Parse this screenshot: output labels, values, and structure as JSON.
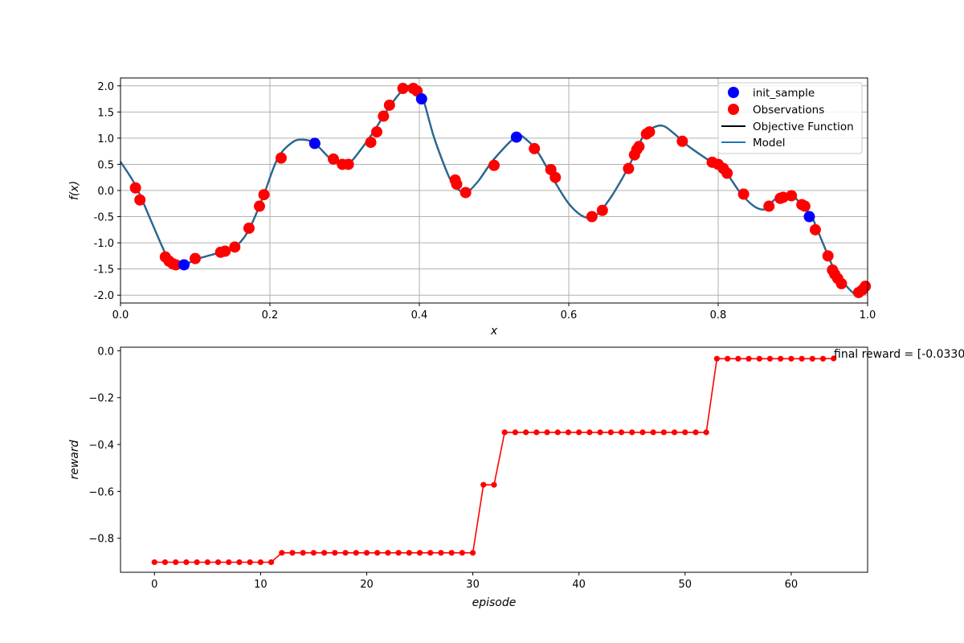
{
  "chart_data": [
    {
      "type": "line",
      "xlabel": "x",
      "ylabel": "f(x)",
      "xlim": [
        0.0,
        1.0
      ],
      "ylim": [
        -2.15,
        2.15
      ],
      "xticks": [
        "0.0",
        "0.2",
        "0.4",
        "0.6",
        "0.8",
        "1.0"
      ],
      "xtick_values": [
        0.0,
        0.2,
        0.4,
        0.6,
        0.8,
        1.0
      ],
      "yticks": [
        "-2.0",
        "-1.5",
        "-1.0",
        "-0.5",
        "0.0",
        "0.5",
        "1.0",
        "1.5",
        "2.0"
      ],
      "ytick_values": [
        -2.0,
        -1.5,
        -1.0,
        -0.5,
        0.0,
        0.5,
        1.0,
        1.5,
        2.0
      ],
      "grid": true,
      "legend_position": "top-right",
      "legend": [
        {
          "label": "init_sample",
          "kind": "dot",
          "color": "#0000ff"
        },
        {
          "label": "Observations",
          "kind": "dot",
          "color": "#ff0000"
        },
        {
          "label": "Objective Function",
          "kind": "line",
          "color": "#000000"
        },
        {
          "label": "Model",
          "kind": "line",
          "color": "#1f77b4"
        }
      ],
      "curve": {
        "name": "Model",
        "color": "#1f77b4",
        "x": [
          0.0,
          0.02,
          0.04,
          0.06,
          0.07,
          0.085,
          0.1,
          0.13,
          0.15,
          0.17,
          0.19,
          0.21,
          0.23,
          0.245,
          0.26,
          0.28,
          0.295,
          0.305,
          0.32,
          0.34,
          0.36,
          0.38,
          0.395,
          0.405,
          0.42,
          0.44,
          0.45,
          0.46,
          0.465,
          0.48,
          0.5,
          0.53,
          0.545,
          0.56,
          0.58,
          0.6,
          0.62,
          0.635,
          0.645,
          0.66,
          0.68,
          0.7,
          0.71,
          0.725,
          0.74,
          0.76,
          0.79,
          0.81,
          0.83,
          0.85,
          0.865,
          0.875,
          0.89,
          0.9,
          0.91,
          0.925,
          0.94,
          0.955,
          0.97,
          0.985,
          0.992,
          1.0
        ],
        "y": [
          0.55,
          0.1,
          -0.55,
          -1.2,
          -1.38,
          -1.43,
          -1.32,
          -1.2,
          -1.12,
          -0.8,
          -0.15,
          0.6,
          0.92,
          0.97,
          0.9,
          0.62,
          0.5,
          0.5,
          0.75,
          1.15,
          1.6,
          1.95,
          2.0,
          1.75,
          1.0,
          0.25,
          0.05,
          -0.05,
          -0.03,
          0.2,
          0.6,
          1.03,
          0.95,
          0.7,
          0.2,
          -0.25,
          -0.5,
          -0.48,
          -0.35,
          -0.05,
          0.45,
          1.05,
          1.18,
          1.24,
          1.1,
          0.85,
          0.55,
          0.35,
          -0.05,
          -0.32,
          -0.35,
          -0.18,
          -0.1,
          -0.1,
          -0.25,
          -0.5,
          -1.0,
          -1.5,
          -1.8,
          -2.0,
          -1.95,
          -1.85
        ]
      },
      "series": [
        {
          "name": "init_sample",
          "color": "#0000ff",
          "x": [
            0.085,
            0.26,
            0.403,
            0.53,
            0.922
          ],
          "y": [
            -1.42,
            0.9,
            1.75,
            1.02,
            -0.5
          ]
        },
        {
          "name": "Observations",
          "color": "#ff0000",
          "x": [
            0.02,
            0.026,
            0.06,
            0.065,
            0.07,
            0.074,
            0.1,
            0.134,
            0.14,
            0.153,
            0.172,
            0.186,
            0.192,
            0.215,
            0.26,
            0.285,
            0.297,
            0.305,
            0.335,
            0.343,
            0.352,
            0.36,
            0.378,
            0.392,
            0.397,
            0.448,
            0.45,
            0.462,
            0.5,
            0.554,
            0.576,
            0.582,
            0.631,
            0.645,
            0.68,
            0.688,
            0.691,
            0.694,
            0.704,
            0.708,
            0.752,
            0.792,
            0.8,
            0.807,
            0.812,
            0.834,
            0.868,
            0.883,
            0.887,
            0.898,
            0.912,
            0.916,
            0.93,
            0.947,
            0.953,
            0.956,
            0.96,
            0.965,
            0.988,
            0.993,
            0.997
          ],
          "y": [
            0.05,
            -0.18,
            -1.27,
            -1.35,
            -1.4,
            -1.42,
            -1.3,
            -1.18,
            -1.16,
            -1.08,
            -0.72,
            -0.3,
            -0.08,
            0.62,
            0.9,
            0.6,
            0.5,
            0.5,
            0.92,
            1.12,
            1.42,
            1.63,
            1.95,
            1.95,
            1.9,
            0.2,
            0.12,
            -0.04,
            0.48,
            0.8,
            0.4,
            0.25,
            -0.5,
            -0.38,
            0.42,
            0.68,
            0.78,
            0.84,
            1.08,
            1.12,
            0.94,
            0.54,
            0.5,
            0.42,
            0.33,
            -0.07,
            -0.3,
            -0.15,
            -0.13,
            -0.1,
            -0.27,
            -0.3,
            -0.75,
            -1.25,
            -1.52,
            -1.6,
            -1.68,
            -1.78,
            -1.95,
            -1.9,
            -1.83
          ]
        }
      ]
    },
    {
      "type": "line",
      "xlabel": "episode",
      "ylabel": "reward",
      "xlim": [
        -3.2,
        67.2
      ],
      "ylim": [
        -0.945,
        0.015
      ],
      "xticks": [
        "0",
        "10",
        "20",
        "30",
        "40",
        "50",
        "60"
      ],
      "xtick_values": [
        0,
        10,
        20,
        30,
        40,
        50,
        60
      ],
      "yticks": [
        "−0.8",
        "−0.6",
        "−0.4",
        "−0.2",
        "0.0"
      ],
      "ytick_values": [
        -0.8,
        -0.6,
        -0.4,
        -0.2,
        0.0
      ],
      "grid": false,
      "annotation": "final reward = [-0.0330",
      "series": [
        {
          "color": "#ff0000",
          "x": [
            0,
            1,
            2,
            3,
            4,
            5,
            6,
            7,
            8,
            9,
            10,
            11,
            12,
            13,
            14,
            15,
            16,
            17,
            18,
            19,
            20,
            21,
            22,
            23,
            24,
            25,
            26,
            27,
            28,
            29,
            30,
            31,
            32,
            33,
            34,
            35,
            36,
            37,
            38,
            39,
            40,
            41,
            42,
            43,
            44,
            45,
            46,
            47,
            48,
            49,
            50,
            51,
            52,
            53,
            54,
            55,
            56,
            57,
            58,
            59,
            60,
            61,
            62,
            63,
            64
          ],
          "y": [
            -0.902,
            -0.902,
            -0.902,
            -0.902,
            -0.902,
            -0.902,
            -0.902,
            -0.902,
            -0.902,
            -0.902,
            -0.902,
            -0.902,
            -0.862,
            -0.862,
            -0.862,
            -0.862,
            -0.862,
            -0.862,
            -0.862,
            -0.862,
            -0.862,
            -0.862,
            -0.862,
            -0.862,
            -0.862,
            -0.862,
            -0.862,
            -0.862,
            -0.862,
            -0.862,
            -0.862,
            -0.572,
            -0.572,
            -0.348,
            -0.348,
            -0.348,
            -0.348,
            -0.348,
            -0.348,
            -0.348,
            -0.348,
            -0.348,
            -0.348,
            -0.348,
            -0.348,
            -0.348,
            -0.348,
            -0.348,
            -0.348,
            -0.348,
            -0.348,
            -0.348,
            -0.348,
            -0.034,
            -0.034,
            -0.034,
            -0.034,
            -0.034,
            -0.034,
            -0.034,
            -0.034,
            -0.034,
            -0.034,
            -0.034,
            -0.033
          ]
        }
      ]
    }
  ]
}
